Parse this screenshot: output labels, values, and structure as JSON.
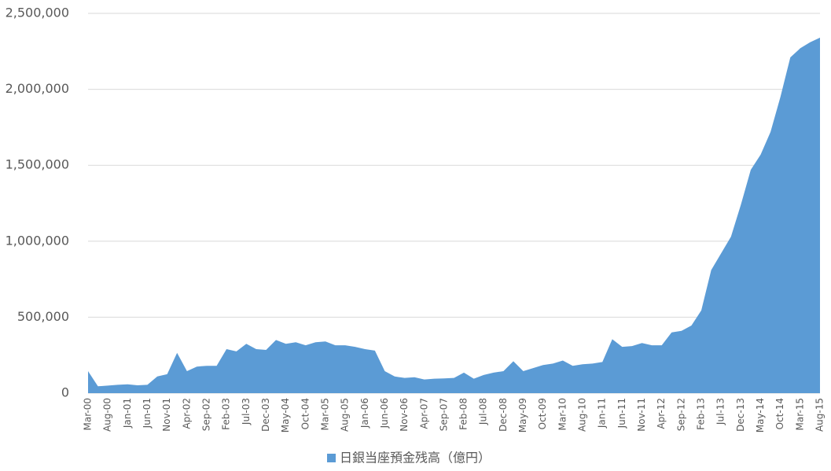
{
  "chart_data": {
    "type": "area",
    "categories": [
      "Mar-00",
      null,
      "Aug-00",
      null,
      "Jan-01",
      null,
      "Jun-01",
      null,
      "Nov-01",
      null,
      "Apr-02",
      null,
      "Sep-02",
      null,
      "Feb-03",
      null,
      "Jul-03",
      null,
      "Dec-03",
      null,
      "May-04",
      null,
      "Oct-04",
      null,
      "Mar-05",
      null,
      "Aug-05",
      null,
      "Jan-06",
      null,
      "Jun-06",
      null,
      "Nov-06",
      null,
      "Apr-07",
      null,
      "Sep-07",
      null,
      "Feb-08",
      null,
      "Jul-08",
      null,
      "Dec-08",
      null,
      "May-09",
      null,
      "Oct-09",
      null,
      "Mar-10",
      null,
      "Aug-10",
      null,
      "Jan-11",
      null,
      "Jun-11",
      null,
      "Nov-11",
      null,
      "Apr-12",
      null,
      "Sep-12",
      null,
      "Feb-13",
      null,
      "Jul-13",
      null,
      "Dec-13",
      null,
      "May-14",
      null,
      "Oct-14",
      null,
      "Mar-15",
      null,
      "Aug-15"
    ],
    "series": [
      {
        "name": "日銀当座預金残高（億円）",
        "color": "#5b9bd5",
        "values": [
          145000,
          45000,
          50000,
          55000,
          58000,
          52000,
          55000,
          110000,
          125000,
          265000,
          145000,
          175000,
          180000,
          180000,
          290000,
          275000,
          325000,
          290000,
          285000,
          350000,
          325000,
          335000,
          315000,
          335000,
          340000,
          315000,
          315000,
          305000,
          290000,
          280000,
          145000,
          110000,
          100000,
          105000,
          90000,
          95000,
          97000,
          100000,
          135000,
          95000,
          120000,
          135000,
          145000,
          210000,
          145000,
          165000,
          185000,
          195000,
          215000,
          180000,
          190000,
          195000,
          205000,
          355000,
          305000,
          310000,
          330000,
          315000,
          315000,
          400000,
          410000,
          445000,
          545000,
          810000,
          920000,
          1030000,
          1240000,
          1470000,
          1570000,
          1720000,
          1950000,
          2210000,
          2270000,
          2310000,
          2340000
        ]
      }
    ],
    "ylim": [
      0,
      2500000
    ],
    "yticks": [
      0,
      {
        "value": 500000,
        "label": "500,000"
      },
      {
        "value": 1000000,
        "label": "1,000,000"
      },
      {
        "value": 1500000,
        "label": "1,500,000"
      },
      {
        "value": 2000000,
        "label": "2,000,000"
      },
      {
        "value": 2500000,
        "label": "2,500,000"
      }
    ],
    "grid": true,
    "legend": "bottom"
  }
}
